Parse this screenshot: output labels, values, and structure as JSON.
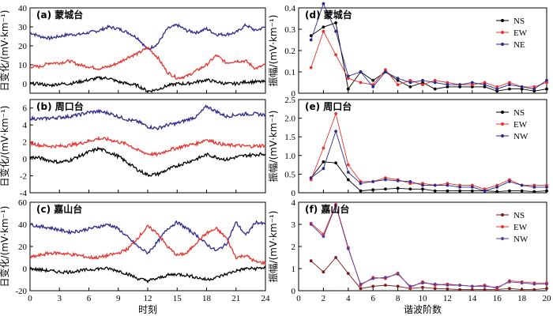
{
  "chart_data": [
    {
      "id": "a",
      "type": "line",
      "title": "(a) 蒙城台",
      "ylabel": "日变化/(mV·km⁻¹)",
      "xlabel": "",
      "xlim": [
        0,
        24
      ],
      "ylim": [
        -5,
        40
      ],
      "yticks": [
        0,
        10,
        20,
        30,
        40
      ],
      "xticks": [
        0,
        3,
        6,
        9,
        12,
        15,
        18,
        21,
        24
      ],
      "show_xticklabels": false,
      "series": [
        {
          "color": "#2b2a8c",
          "x": [
            0,
            1,
            2,
            3,
            4,
            5,
            6,
            7,
            8,
            9,
            10,
            11,
            12,
            13,
            14,
            15,
            16,
            17,
            18,
            19,
            20,
            21,
            22,
            23,
            24
          ],
          "y": [
            27,
            25,
            24,
            25,
            26,
            26,
            27,
            28,
            30,
            29,
            27,
            24,
            18,
            21,
            29,
            31,
            28,
            27,
            29,
            26,
            26,
            27,
            31,
            28,
            30
          ]
        },
        {
          "color": "#e8302c",
          "x": [
            0,
            1,
            2,
            3,
            4,
            5,
            6,
            7,
            8,
            9,
            10,
            11,
            12,
            13,
            14,
            15,
            16,
            17,
            18,
            19,
            20,
            21,
            22,
            23,
            24
          ],
          "y": [
            9,
            9,
            11,
            11,
            12,
            10,
            9,
            8,
            9,
            11,
            14,
            16,
            19,
            14,
            6,
            3,
            4,
            7,
            10,
            15,
            11,
            12,
            12,
            8,
            10
          ]
        },
        {
          "color": "#000000",
          "x": [
            0,
            1,
            2,
            3,
            4,
            5,
            6,
            7,
            8,
            9,
            10,
            11,
            12,
            13,
            14,
            15,
            16,
            17,
            18,
            19,
            20,
            21,
            22,
            23,
            24
          ],
          "y": [
            0,
            0,
            -1,
            0,
            0,
            1,
            2,
            3,
            3,
            1,
            0,
            -1,
            -4,
            -3,
            -1,
            0,
            0,
            1,
            2,
            1,
            0,
            0,
            1,
            1,
            1
          ]
        }
      ]
    },
    {
      "id": "b",
      "type": "line",
      "title": "(b) 周口台",
      "ylabel": "日变化/(mV·km⁻¹)",
      "xlabel": "",
      "xlim": [
        0,
        24
      ],
      "ylim": [
        -4,
        7
      ],
      "yticks": [
        -4,
        -2,
        0,
        2,
        4,
        6
      ],
      "xticks": [
        0,
        3,
        6,
        9,
        12,
        15,
        18,
        21,
        24
      ],
      "show_xticklabels": false,
      "series": [
        {
          "color": "#2b2a8c",
          "x": [
            0,
            1,
            2,
            3,
            4,
            5,
            6,
            7,
            8,
            9,
            10,
            11,
            12,
            13,
            14,
            15,
            16,
            17,
            18,
            19,
            20,
            21,
            22,
            23,
            24
          ],
          "y": [
            4.8,
            4.7,
            4.8,
            4.9,
            5.0,
            5.2,
            5.5,
            5.6,
            5.4,
            5.0,
            4.6,
            4.4,
            3.8,
            3.6,
            4.0,
            4.2,
            4.6,
            5.0,
            6.2,
            5.6,
            5.0,
            5.2,
            5.3,
            5.3,
            5.2
          ]
        },
        {
          "color": "#e8302c",
          "x": [
            0,
            1,
            2,
            3,
            4,
            5,
            6,
            7,
            8,
            9,
            10,
            11,
            12,
            13,
            14,
            15,
            16,
            17,
            18,
            19,
            20,
            21,
            22,
            23,
            24
          ],
          "y": [
            1.9,
            1.6,
            1.5,
            1.5,
            1.6,
            1.8,
            2.1,
            2.4,
            2.3,
            2.0,
            1.7,
            1.0,
            0.6,
            0.5,
            1.0,
            1.3,
            1.6,
            1.8,
            2.3,
            1.9,
            1.6,
            1.6,
            1.5,
            1.5,
            1.6
          ]
        },
        {
          "color": "#000000",
          "x": [
            0,
            1,
            2,
            3,
            4,
            5,
            6,
            7,
            8,
            9,
            10,
            11,
            12,
            13,
            14,
            15,
            16,
            17,
            18,
            19,
            20,
            21,
            22,
            23,
            24
          ],
          "y": [
            0.2,
            0.1,
            -0.2,
            -0.4,
            -0.2,
            0.3,
            0.8,
            1.2,
            0.8,
            0.3,
            -0.5,
            -1.3,
            -1.9,
            -1.8,
            -1.3,
            -0.8,
            -0.4,
            0.0,
            0.5,
            0.2,
            -0.1,
            0.2,
            0.4,
            0.5,
            0.6
          ]
        }
      ]
    },
    {
      "id": "c",
      "type": "line",
      "title": "(c) 嘉山台",
      "ylabel": "日变化/(mV·km⁻¹)",
      "xlabel": "时刻",
      "xlim": [
        0,
        24
      ],
      "ylim": [
        -20,
        60
      ],
      "yticks": [
        -20,
        0,
        20,
        40,
        60
      ],
      "xticks": [
        0,
        3,
        6,
        9,
        12,
        15,
        18,
        21,
        24
      ],
      "show_xticklabels": true,
      "series": [
        {
          "color": "#2b2a8c",
          "x": [
            0,
            1,
            2,
            3,
            4,
            5,
            6,
            7,
            8,
            9,
            10,
            11,
            12,
            13,
            14,
            15,
            16,
            17,
            18,
            19,
            20,
            21,
            22,
            23,
            24
          ],
          "y": [
            40,
            38,
            37,
            35,
            33,
            34,
            36,
            38,
            40,
            36,
            28,
            20,
            14,
            24,
            36,
            42,
            36,
            30,
            22,
            16,
            22,
            42,
            30,
            42,
            40
          ]
        },
        {
          "color": "#e8302c",
          "x": [
            0,
            1,
            2,
            3,
            4,
            5,
            6,
            7,
            8,
            9,
            10,
            11,
            12,
            13,
            14,
            15,
            16,
            17,
            18,
            19,
            20,
            21,
            22,
            23,
            24
          ],
          "y": [
            10,
            12,
            14,
            14,
            13,
            12,
            10,
            10,
            12,
            14,
            18,
            28,
            38,
            32,
            20,
            12,
            14,
            24,
            32,
            36,
            28,
            10,
            12,
            6,
            5
          ]
        },
        {
          "color": "#000000",
          "x": [
            0,
            1,
            2,
            3,
            4,
            5,
            6,
            7,
            8,
            9,
            10,
            11,
            12,
            13,
            14,
            15,
            16,
            17,
            18,
            19,
            20,
            21,
            22,
            23,
            24
          ],
          "y": [
            0,
            -1,
            -2,
            -3,
            -3,
            -2,
            -1,
            0,
            0,
            -2,
            -5,
            -9,
            -11,
            -9,
            -6,
            -5,
            -6,
            -8,
            -10,
            -8,
            -5,
            -2,
            0,
            0,
            1
          ]
        }
      ]
    },
    {
      "id": "d",
      "type": "line",
      "title": "(d) 蒙城台",
      "ylabel": "振幅/(mV·km⁻¹)",
      "xlabel": "",
      "xlim": [
        0,
        20
      ],
      "ylim": [
        0,
        0.4
      ],
      "yticks": [
        0,
        0.1,
        0.2,
        0.3,
        0.4
      ],
      "xticks": [
        0,
        2,
        4,
        6,
        8,
        10,
        12,
        14,
        16,
        18,
        20
      ],
      "show_xticklabels": false,
      "legend": "top-right",
      "series": [
        {
          "name": "NS",
          "color": "#000000",
          "x": [
            1,
            2,
            3,
            4,
            5,
            6,
            7,
            8,
            9,
            10,
            11,
            12,
            13,
            14,
            15,
            16,
            17,
            18,
            19,
            20
          ],
          "y": [
            0.27,
            0.31,
            0.33,
            0.02,
            0.1,
            0.06,
            0.1,
            0.06,
            0.03,
            0.05,
            0.02,
            0.03,
            0.03,
            0.03,
            0.03,
            0.01,
            0.02,
            0.02,
            0.01,
            0.02
          ]
        },
        {
          "name": "EW",
          "color": "#e8302c",
          "x": [
            1,
            2,
            3,
            4,
            5,
            6,
            7,
            8,
            9,
            10,
            11,
            12,
            13,
            14,
            15,
            16,
            17,
            18,
            19,
            20
          ],
          "y": [
            0.12,
            0.29,
            0.18,
            0.07,
            0.05,
            0.04,
            0.11,
            0.04,
            0.06,
            0.04,
            0.06,
            0.05,
            0.04,
            0.04,
            0.05,
            0.03,
            0.05,
            0.03,
            0.03,
            0.05
          ]
        },
        {
          "name": "NE",
          "color": "#2b2a8c",
          "x": [
            1,
            2,
            3,
            4,
            5,
            6,
            7,
            8,
            9,
            10,
            11,
            12,
            13,
            14,
            15,
            16,
            17,
            18,
            19,
            20
          ],
          "y": [
            0.25,
            0.42,
            0.29,
            0.08,
            0.1,
            0.03,
            0.1,
            0.07,
            0.05,
            0.06,
            0.05,
            0.04,
            0.04,
            0.05,
            0.04,
            0.02,
            0.04,
            0.03,
            0.02,
            0.06
          ]
        }
      ]
    },
    {
      "id": "e",
      "type": "line",
      "title": "(e) 周口台",
      "ylabel": "振幅/(mV·km⁻¹)",
      "xlabel": "",
      "xlim": [
        0,
        20
      ],
      "ylim": [
        0,
        2.5
      ],
      "yticks": [
        0,
        0.5,
        1.0,
        1.5,
        2.0,
        2.5
      ],
      "yticklabels": [
        "0",
        "0.5",
        "1.0",
        "1.5",
        "2.0",
        "2.5"
      ],
      "xticks": [
        0,
        2,
        4,
        6,
        8,
        10,
        12,
        14,
        16,
        18,
        20
      ],
      "show_xticklabels": false,
      "legend": "top-right",
      "series": [
        {
          "name": "NS",
          "color": "#000000",
          "x": [
            1,
            2,
            3,
            4,
            5,
            6,
            7,
            8,
            9,
            10,
            11,
            12,
            13,
            14,
            15,
            16,
            17,
            18,
            19,
            20
          ],
          "y": [
            0.4,
            0.83,
            0.8,
            0.35,
            0.05,
            0.08,
            0.1,
            0.12,
            0.1,
            0.1,
            0.05,
            0.05,
            0.05,
            0.05,
            0.05,
            0.03,
            0.05,
            0.05,
            0.03,
            0.05
          ]
        },
        {
          "name": "EW",
          "color": "#e8302c",
          "x": [
            1,
            2,
            3,
            4,
            5,
            6,
            7,
            8,
            9,
            10,
            11,
            12,
            13,
            14,
            15,
            16,
            17,
            18,
            19,
            20
          ],
          "y": [
            0.35,
            1.2,
            2.12,
            0.75,
            0.3,
            0.3,
            0.4,
            0.35,
            0.25,
            0.25,
            0.2,
            0.25,
            0.2,
            0.2,
            0.1,
            0.2,
            0.35,
            0.2,
            0.2,
            0.2
          ]
        },
        {
          "name": "NW",
          "color": "#2b2a8c",
          "x": [
            1,
            2,
            3,
            4,
            5,
            6,
            7,
            8,
            9,
            10,
            11,
            12,
            13,
            14,
            15,
            16,
            17,
            18,
            19,
            20
          ],
          "y": [
            0.4,
            0.65,
            1.65,
            0.55,
            0.25,
            0.3,
            0.35,
            0.32,
            0.3,
            0.2,
            0.2,
            0.2,
            0.15,
            0.15,
            0.05,
            0.15,
            0.3,
            0.2,
            0.15,
            0.15
          ]
        }
      ]
    },
    {
      "id": "f",
      "type": "line",
      "title": "(f) 嘉山台",
      "ylabel": "振幅/(mV·km⁻¹)",
      "xlabel": "谐波阶数",
      "xlim": [
        0,
        20
      ],
      "ylim": [
        0,
        4
      ],
      "yticks": [
        0,
        1,
        2,
        3,
        4
      ],
      "xticks": [
        0,
        2,
        4,
        6,
        8,
        10,
        12,
        14,
        16,
        18,
        20
      ],
      "show_xticklabels": true,
      "legend": "top-right",
      "series": [
        {
          "name": "NS",
          "color": "#7a1a1a",
          "x": [
            1,
            2,
            3,
            4,
            5,
            6,
            7,
            8,
            9,
            10,
            11,
            12,
            13,
            14,
            15,
            16,
            17,
            18,
            19,
            20
          ],
          "y": [
            1.35,
            0.85,
            1.5,
            0.78,
            0.1,
            0.2,
            0.25,
            0.2,
            0.1,
            0.15,
            0.1,
            0.08,
            0.05,
            0.05,
            0.05,
            0.05,
            0.1,
            0.05,
            0.05,
            0.1
          ]
        },
        {
          "name": "EW",
          "color": "#e8302c",
          "x": [
            1,
            2,
            3,
            4,
            5,
            6,
            7,
            8,
            9,
            10,
            11,
            12,
            13,
            14,
            15,
            16,
            17,
            18,
            19,
            20
          ],
          "y": [
            3.05,
            2.55,
            3.9,
            1.95,
            0.25,
            0.6,
            0.55,
            0.8,
            0.15,
            0.4,
            0.25,
            0.3,
            0.25,
            0.2,
            0.25,
            0.1,
            0.45,
            0.4,
            0.35,
            0.35
          ]
        },
        {
          "name": "NW",
          "color": "#5b3fa0",
          "x": [
            1,
            2,
            3,
            4,
            5,
            6,
            7,
            8,
            9,
            10,
            11,
            12,
            13,
            14,
            15,
            16,
            17,
            18,
            19,
            20
          ],
          "y": [
            3.0,
            2.45,
            3.85,
            1.9,
            0.3,
            0.55,
            0.6,
            0.75,
            0.2,
            0.35,
            0.3,
            0.25,
            0.25,
            0.2,
            0.2,
            0.15,
            0.4,
            0.35,
            0.3,
            0.3
          ]
        }
      ]
    }
  ]
}
